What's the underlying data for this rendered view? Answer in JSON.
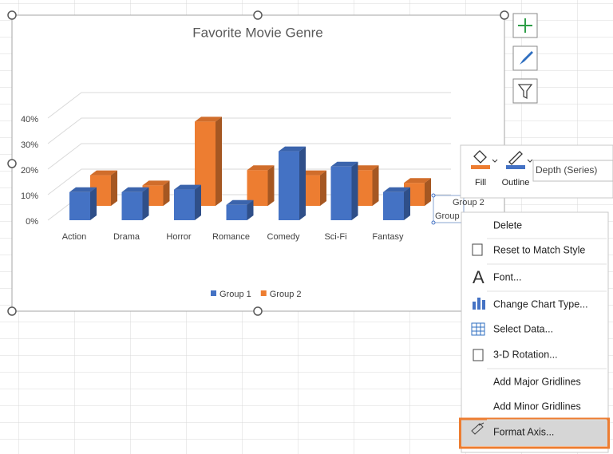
{
  "chart_data": {
    "type": "bar",
    "title": "Favorite Movie Genre",
    "categories": [
      "Action",
      "Drama",
      "Horror",
      "Romance",
      "Comedy",
      "Sci-Fi",
      "Fantasy"
    ],
    "series": [
      {
        "name": "Group  1",
        "color": "#4472c4",
        "values": [
          11,
          11,
          12,
          6,
          27,
          21,
          11
        ]
      },
      {
        "name": "Group 2",
        "color": "#ed7d31",
        "values": [
          12,
          8,
          33,
          14,
          12,
          14,
          9
        ]
      }
    ],
    "ylim": [
      0,
      40
    ],
    "yticks": [
      {
        "value": 0,
        "label": "0%"
      },
      {
        "value": 10,
        "label": "10%"
      },
      {
        "value": 20,
        "label": "20%"
      },
      {
        "value": 30,
        "label": "30%"
      },
      {
        "value": 40,
        "label": "40%"
      }
    ],
    "grid": true,
    "legend": "bottom",
    "depth_axis_labels": [
      "Group 2",
      "Group"
    ]
  },
  "mini_toolbar": {
    "fill": "Fill",
    "outline": "Outline",
    "series_dropdown": "Depth (Series)"
  },
  "context_menu": [
    "Delete",
    "Reset to Match Style",
    "Font...",
    "Change Chart Type...",
    "Select Data...",
    "3-D Rotation...",
    "Add Major Gridlines",
    "Add Minor Gridlines",
    "Format Axis..."
  ]
}
